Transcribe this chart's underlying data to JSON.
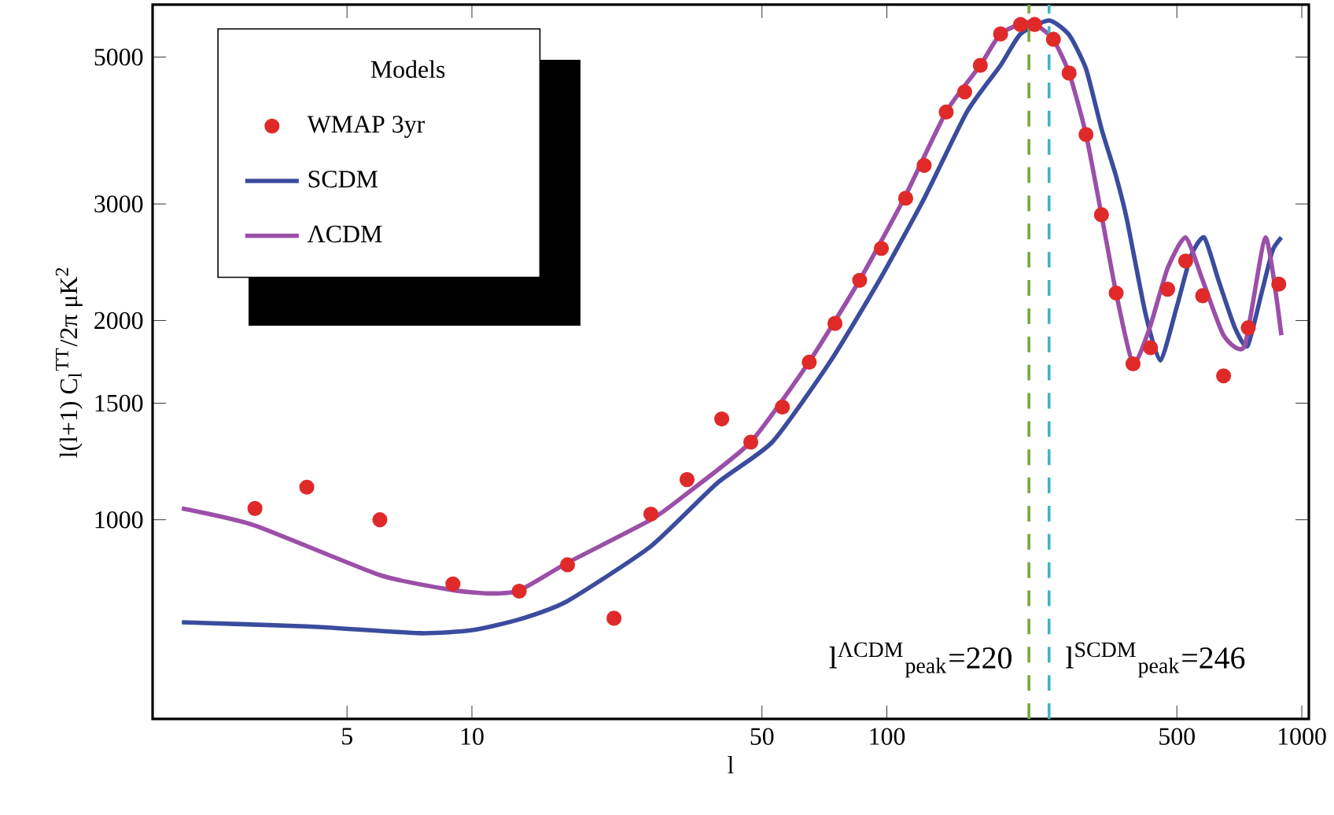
{
  "chart_data": {
    "type": "line",
    "xlabel": "l",
    "ylabel": "l(l+1) C$_{l}$$^{TT}$/2π μK$^{2}$",
    "legend_title": "Models",
    "legend": "top left",
    "log": "xy",
    "xlim": [
      1.7,
      1040
    ],
    "ylim": [
      500,
      6000
    ],
    "xticks": [
      5,
      10,
      50,
      100,
      500,
      1000
    ],
    "yticks": [
      1000,
      1500,
      2000,
      3000,
      5000
    ],
    "series": [
      {
        "name": "WMAP 3yr",
        "type": "scatter",
        "marker": "circle",
        "color": "#e02a2a",
        "x": [
          3,
          4,
          6,
          9,
          13,
          17,
          22,
          27,
          33,
          40,
          47,
          56,
          65,
          75,
          86,
          97,
          111,
          123,
          139,
          154,
          168,
          188,
          210,
          227,
          252,
          275,
          302,
          329,
          357,
          392,
          432,
          475,
          525,
          577,
          648,
          743,
          880
        ],
        "values": [
          1040,
          1120,
          1000,
          800,
          780,
          855,
          710,
          1020,
          1150,
          1420,
          1310,
          1480,
          1730,
          1980,
          2300,
          2570,
          3060,
          3430,
          4130,
          4430,
          4860,
          5420,
          5600,
          5600,
          5320,
          4730,
          3820,
          2890,
          2200,
          1720,
          1820,
          2230,
          2460,
          2180,
          1650,
          1950,
          2270
        ]
      },
      {
        "name": "SCDM",
        "color": "#3b4c9e",
        "x": [
          2,
          4,
          7.5,
          10,
          13,
          17,
          27,
          39,
          53,
          73,
          96,
          123,
          156,
          188,
          210,
          246,
          275,
          302,
          329,
          357,
          379,
          420,
          456,
          500,
          540,
          582,
          630,
          690,
          740,
          800,
          850,
          893
        ],
        "values": [
          700,
          690,
          674,
          681,
          707,
          754,
          912,
          1136,
          1311,
          1733,
          2302,
          3057,
          4134,
          4860,
          5420,
          5680,
          5400,
          4800,
          3900,
          3300,
          2840,
          2050,
          1740,
          2100,
          2500,
          2670,
          2300,
          1950,
          1830,
          2200,
          2550,
          2670
        ]
      },
      {
        "name": "ΛCDM",
        "color": "#9b4fa8",
        "x": [
          2,
          3,
          6,
          9,
          11,
          13,
          17,
          27,
          33,
          47,
          65,
          86,
          110,
          139,
          168,
          188,
          220,
          250,
          275,
          302,
          329,
          357,
          392,
          430,
          475,
          525,
          577,
          648,
          728,
          818,
          893
        ],
        "values": [
          1040,
          980,
          825,
          783,
          774,
          782,
          861,
          1000,
          1096,
          1311,
          1733,
          2302,
          3057,
          4134,
          4860,
          5420,
          5650,
          5350,
          4730,
          3820,
          2890,
          2200,
          1720,
          1950,
          2400,
          2670,
          2300,
          1900,
          1830,
          2670,
          1900
        ]
      }
    ],
    "ref_lines": [
      {
        "axis": "x",
        "value": 220,
        "label": "l$^{ΛCDM}$$_{peak}$=220",
        "color": "#7aa83a",
        "line_style": "dashed"
      },
      {
        "axis": "x",
        "value": 246,
        "label": "l$^{SCDM}$$_{peak}$=246",
        "color": "#3fb4c8",
        "line_style": "dashed"
      }
    ]
  }
}
